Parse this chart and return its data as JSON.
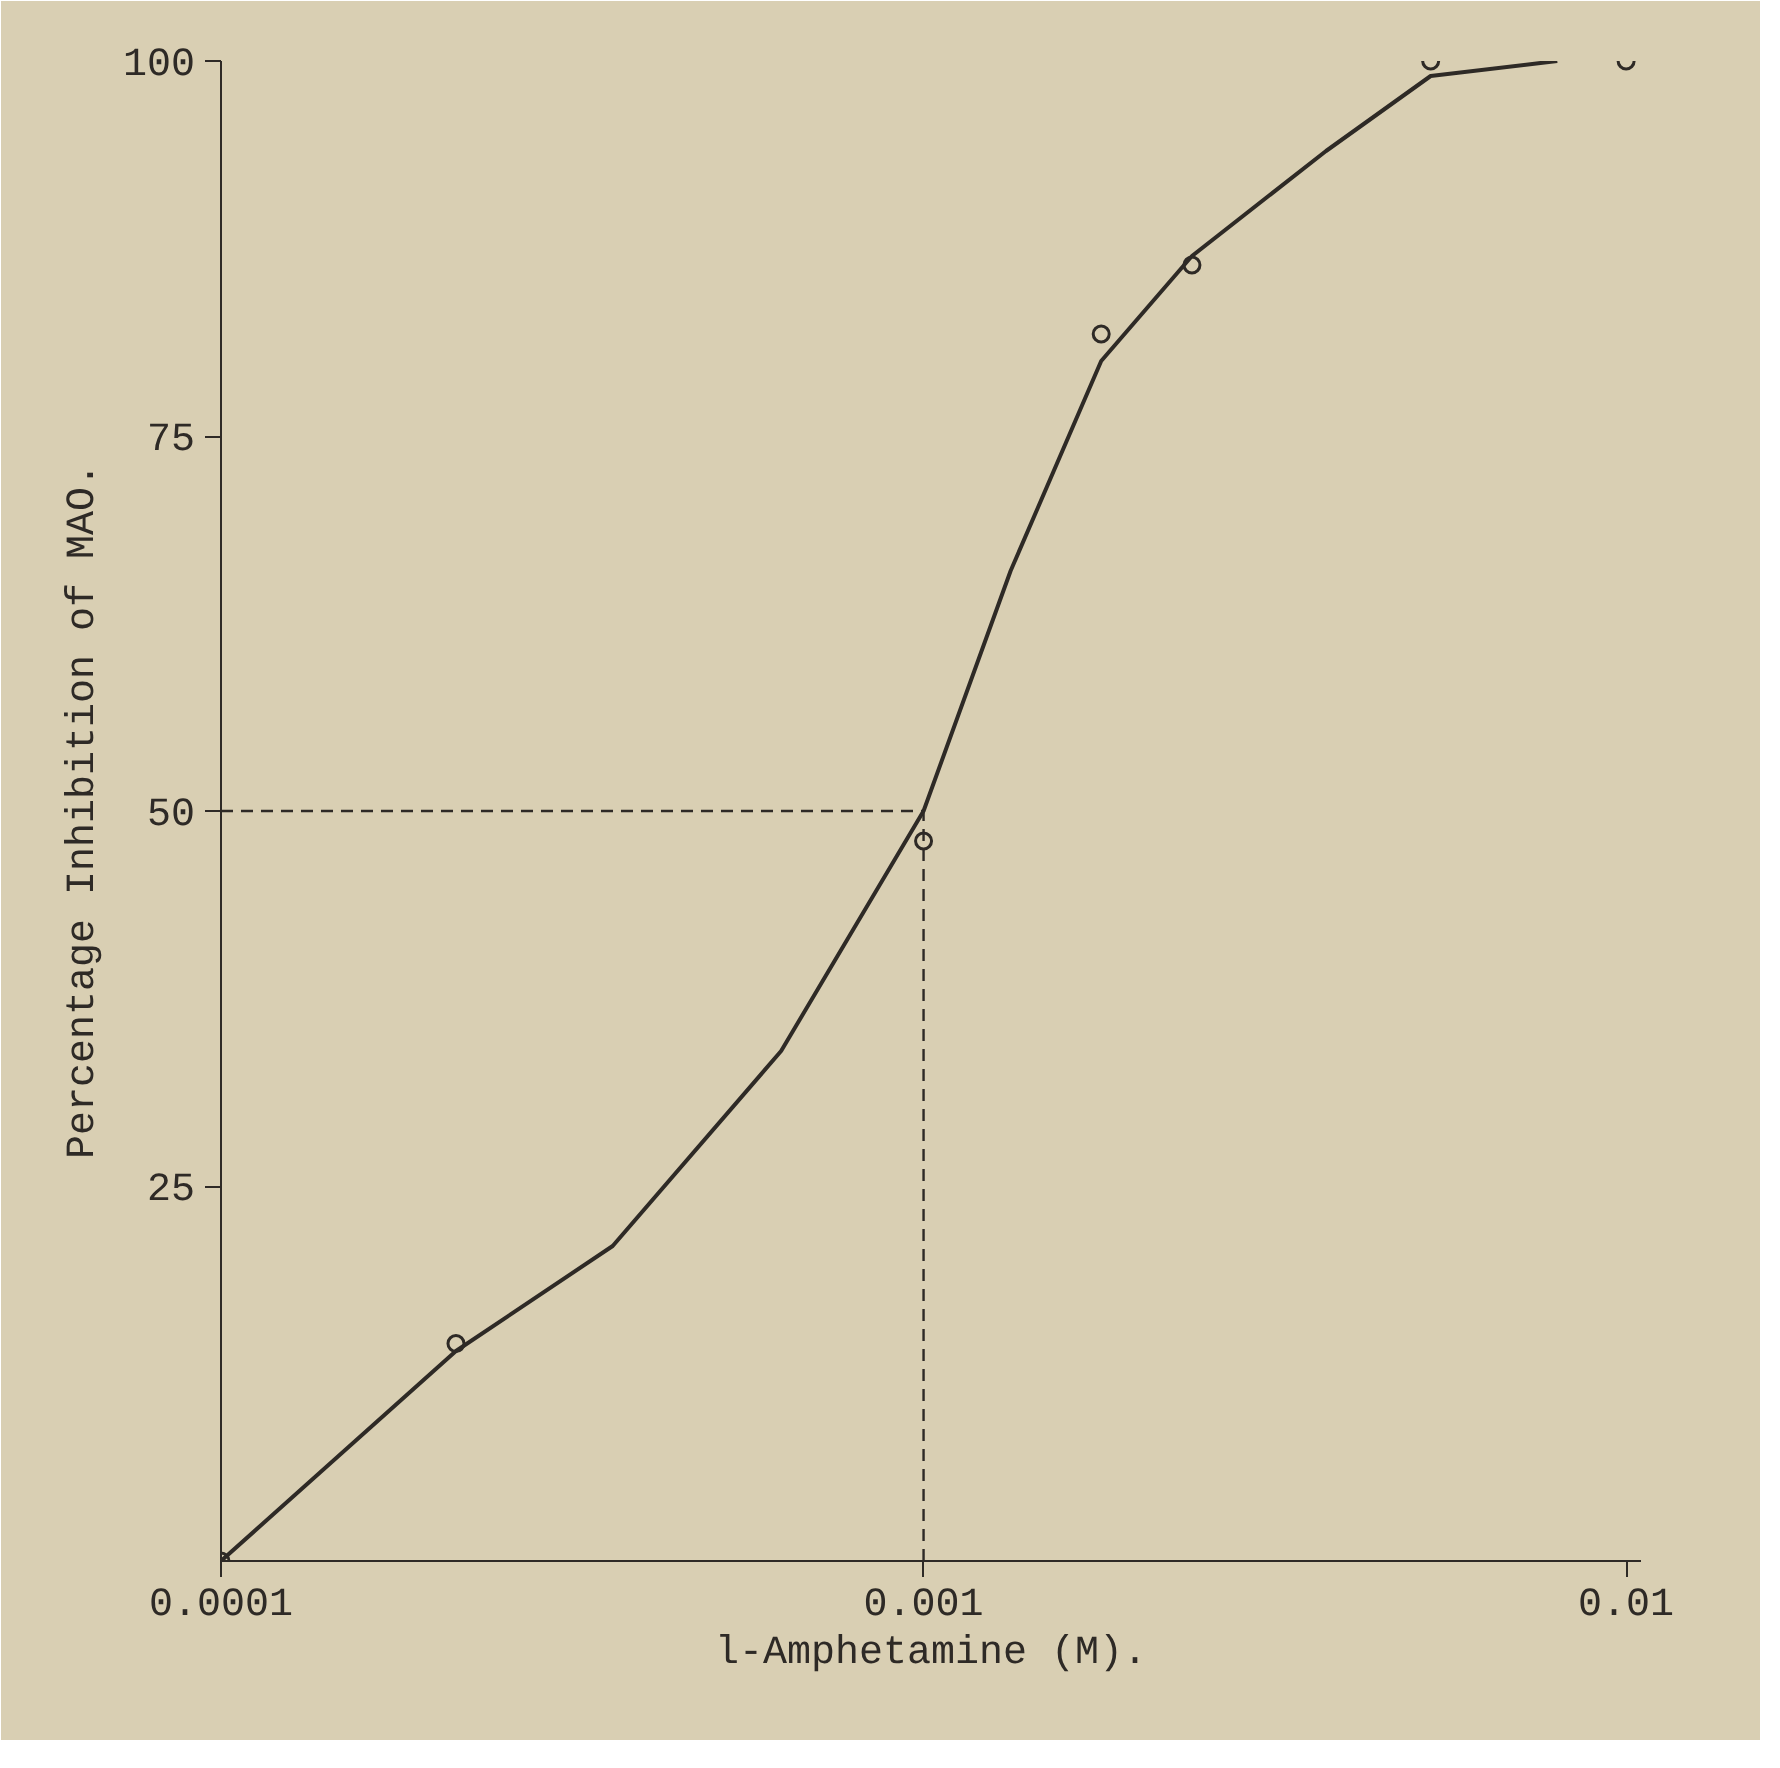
{
  "chart_data": {
    "type": "line",
    "xlabel": "l-Amphetamine (M).",
    "ylabel": "Percentage Inhibition of MAO.",
    "log": "x",
    "xlim": [
      0.0001,
      0.0105
    ],
    "ylim": [
      0,
      100
    ],
    "xticks": [
      0.0001,
      0.001,
      0.01
    ],
    "yticks": [
      25,
      50,
      75,
      100
    ],
    "grid": false,
    "series": [
      {
        "color": "#2e2a26",
        "marker": "none",
        "line_style": "solid",
        "x": [
          0.0001,
          0.000216,
          0.000361,
          0.000627,
          0.001,
          0.00133,
          0.00179,
          0.00241,
          0.00374,
          0.00527,
          0.00798
        ],
        "values": [
          0,
          14,
          21,
          34,
          50,
          66,
          80,
          87,
          94,
          99,
          100
        ]
      },
      {
        "type": "scatter",
        "color": "#2e2a26",
        "marker": "circle",
        "x": [
          0.0001,
          0.000216,
          0.001,
          0.00179,
          0.00241,
          0.00527,
          0.01
        ],
        "values": [
          0,
          14.5,
          48,
          81.8,
          86.4,
          100,
          100
        ]
      }
    ],
    "ref_lines": [
      {
        "axis": "y",
        "value": 50,
        "line_style": "dashed",
        "color": "#2e2a26"
      },
      {
        "axis": "x",
        "value": 0.001,
        "line_style": "dashed",
        "color": "#2e2a26"
      }
    ]
  }
}
